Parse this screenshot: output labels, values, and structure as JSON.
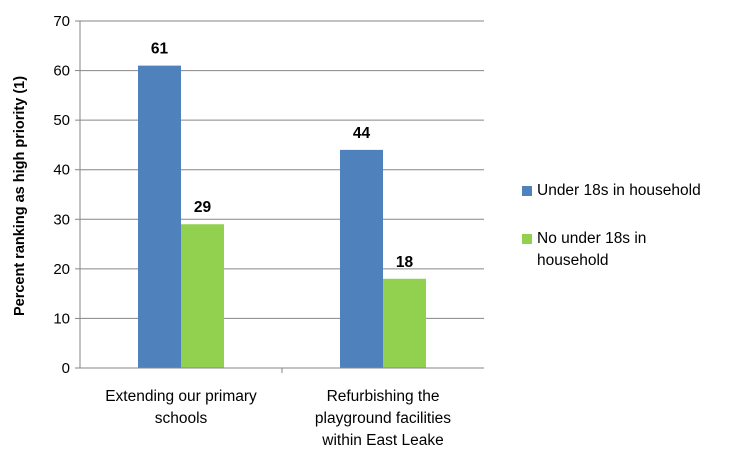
{
  "chart_data": {
    "type": "bar",
    "categories": [
      "Extending our primary schools",
      "Refurbishing the playground facilities within East Leake"
    ],
    "category_lines": [
      [
        "Extending our primary",
        "schools"
      ],
      [
        "Refurbishing the",
        "playground facilities",
        "within East Leake"
      ]
    ],
    "series": [
      {
        "name": "Under 18s in household",
        "values": [
          61,
          44
        ],
        "color": "#4F81BD"
      },
      {
        "name": "No under 18s in household",
        "values": [
          29,
          18
        ],
        "color": "#92D050"
      }
    ],
    "legend_lines": [
      [
        "Under 18s in household"
      ],
      [
        "No under 18s in",
        "household"
      ]
    ],
    "ylabel": "Percent ranking as high priority (1)",
    "ylim": [
      0,
      70
    ],
    "yticks": [
      0,
      10,
      20,
      30,
      40,
      50,
      60,
      70
    ],
    "grid": true,
    "legend_position": "right",
    "data_labels": true
  }
}
